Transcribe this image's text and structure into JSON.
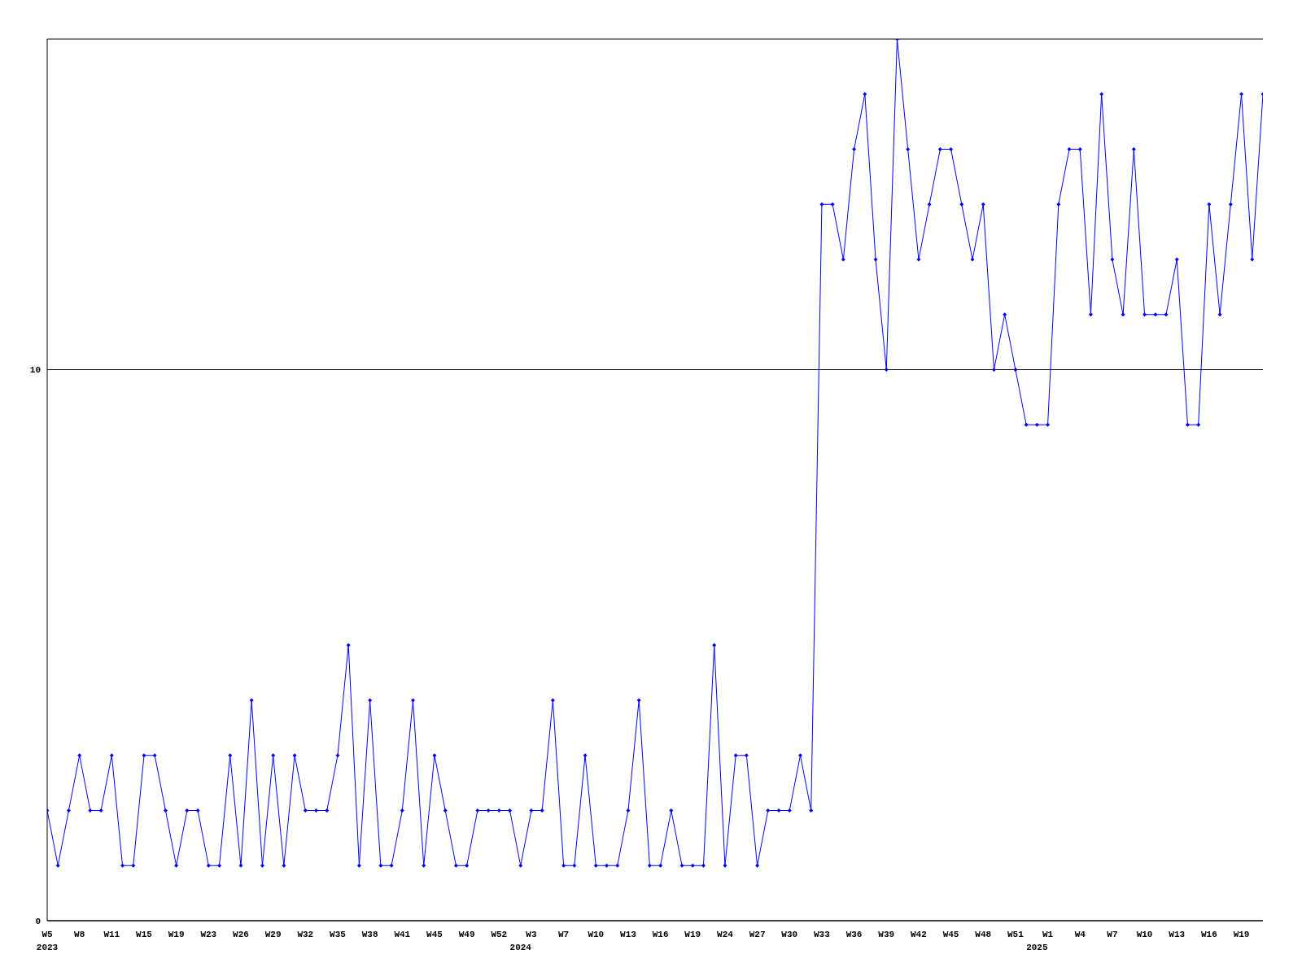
{
  "chart_data": {
    "type": "line",
    "categories": [
      "W5\n2023",
      null,
      null,
      "W8",
      null,
      null,
      "W11",
      null,
      null,
      "W15",
      null,
      null,
      "W19",
      null,
      null,
      "W23",
      null,
      null,
      "W26",
      null,
      null,
      "W29",
      null,
      null,
      "W32",
      null,
      null,
      "W35",
      null,
      null,
      "W38",
      null,
      null,
      "W41",
      null,
      null,
      "W45",
      null,
      null,
      "W49",
      null,
      null,
      "W52",
      null,
      "\n2024",
      "W3",
      null,
      null,
      "W7",
      null,
      null,
      "W10",
      null,
      null,
      "W13",
      null,
      null,
      "W16",
      null,
      null,
      "W19",
      null,
      null,
      "W24",
      null,
      null,
      "W27",
      null,
      null,
      "W30",
      null,
      null,
      "W33",
      null,
      null,
      "W36",
      null,
      null,
      "W39",
      null,
      null,
      "W42",
      null,
      null,
      "W45",
      null,
      null,
      "W48",
      null,
      null,
      "W51",
      null,
      "\n2025",
      "W1",
      null,
      null,
      "W4",
      null,
      null,
      "W7",
      null,
      null,
      "W10",
      null,
      null,
      "W13",
      null,
      null,
      "W16",
      null,
      null,
      "W19",
      null,
      null
    ],
    "series": [
      {
        "color": "#0000ff",
        "values": [
          2,
          1,
          2,
          3,
          2,
          2,
          3,
          1,
          1,
          3,
          3,
          2,
          1,
          2,
          2,
          1,
          1,
          3,
          1,
          4,
          1,
          3,
          1,
          3,
          2,
          2,
          2,
          3,
          5,
          1,
          4,
          1,
          1,
          2,
          4,
          1,
          3,
          2,
          1,
          1,
          2,
          2,
          2,
          2,
          1,
          2,
          2,
          4,
          1,
          1,
          3,
          1,
          1,
          1,
          2,
          4,
          1,
          1,
          2,
          1,
          1,
          1,
          5,
          1,
          3,
          3,
          1,
          2,
          2,
          2,
          3,
          2,
          13,
          13,
          12,
          14,
          15,
          12,
          10,
          16,
          14,
          12,
          13,
          14,
          14,
          13,
          12,
          13,
          10,
          11,
          10,
          9,
          9,
          9,
          13,
          14,
          14,
          11,
          15,
          12,
          11,
          14,
          11,
          11,
          11,
          12,
          9,
          9,
          13,
          11,
          13,
          15,
          12,
          15
        ]
      }
    ],
    "ylim": [
      0,
      16
    ],
    "yticks": [
      0,
      10
    ],
    "grid": "y",
    "marker": "diamond",
    "line_style": "solid",
    "legend": false
  }
}
